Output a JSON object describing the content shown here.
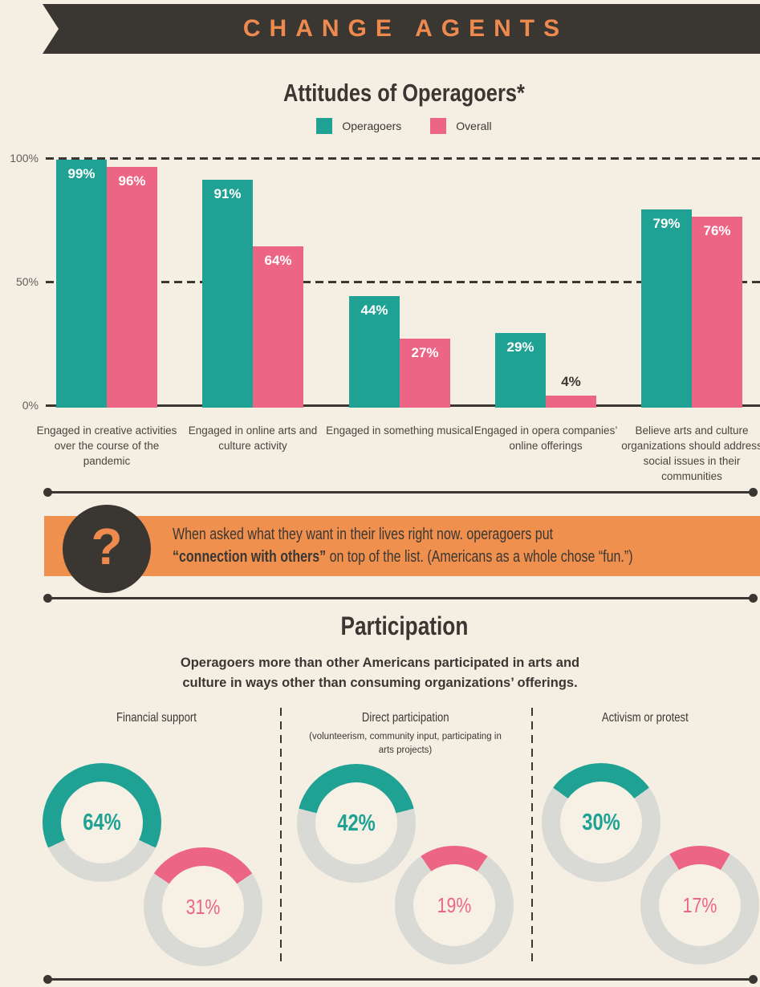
{
  "colors": {
    "background": "#f5efe3",
    "dark": "#3a3733",
    "orange": "#ef8a4e",
    "orange_box": "#f0904e",
    "teal": "#1fa294",
    "pink": "#ed6584",
    "ring_gray": "#d9d9d6"
  },
  "header": {
    "title": "CHANGE AGENTS"
  },
  "attitudes": {
    "title": "Attitudes of Operagoers*",
    "legend": [
      {
        "label": "Operagoers",
        "color": "#1fa294"
      },
      {
        "label": "Overall",
        "color": "#ed6584"
      }
    ],
    "y_ticks": [
      "100%",
      "50%",
      "0%"
    ]
  },
  "chart_data": [
    {
      "type": "bar",
      "title": "Attitudes of Operagoers*",
      "categories": [
        "Engaged in creative activities over the course of the pandemic",
        "Engaged in online arts and culture activity",
        "Engaged in something musical",
        "Engaged in opera companies’ online offerings",
        "Believe arts and culture organizations should address social issues in their communities"
      ],
      "series": [
        {
          "name": "Operagoers",
          "color": "#1fa294",
          "values": [
            99,
            91,
            44,
            29,
            79
          ]
        },
        {
          "name": "Overall",
          "color": "#ed6584",
          "values": [
            96,
            64,
            27,
            4,
            76
          ]
        }
      ],
      "xlabel": "",
      "ylabel": "",
      "ylim": [
        0,
        100
      ],
      "y_tick_labels": [
        "0%",
        "50%",
        "100%"
      ],
      "gridlines": "dashed at 50% and 100%, solid axis at 0%",
      "legend_position": "top",
      "data_labels": [
        "99%",
        "96%",
        "91%",
        "64%",
        "44%",
        "27%",
        "29%",
        "4%",
        "79%",
        "76%"
      ]
    },
    {
      "type": "pie",
      "subtype": "paired-donuts",
      "title": "Participation",
      "groups": [
        {
          "category": "Financial support",
          "operagoers_pct": 64,
          "overall_pct": 31
        },
        {
          "category": "Direct participation (volunteerism, community input, participating in arts projects)",
          "operagoers_pct": 42,
          "overall_pct": 19
        },
        {
          "category": "Activism or protest",
          "operagoers_pct": 30,
          "overall_pct": 17
        }
      ],
      "legend": [
        "Operagoers (teal)",
        "Overall (pink)"
      ]
    }
  ],
  "callout": {
    "icon": "question-mark",
    "line1": "When asked what they want in their lives right now. operagoers put",
    "line2_bold": "“connection with others”",
    "line2_rest": " on top of the list. (Americans as a whole chose “fun.”)"
  },
  "participation": {
    "heading": "Participation",
    "subtitle": "Operagoers more than other Americans participated in arts and culture in ways other than consuming organizations’ offerings.",
    "columns": [
      {
        "title": "Financial support",
        "subtitle": "",
        "operagoers_label": "64%",
        "overall_label": "31%"
      },
      {
        "title": "Direct participation",
        "subtitle": "(volunteerism, community input, participating in arts projects)",
        "operagoers_label": "42%",
        "overall_label": "19%"
      },
      {
        "title": "Activism or protest",
        "subtitle": "",
        "operagoers_label": "30%",
        "overall_label": "17%"
      }
    ]
  }
}
